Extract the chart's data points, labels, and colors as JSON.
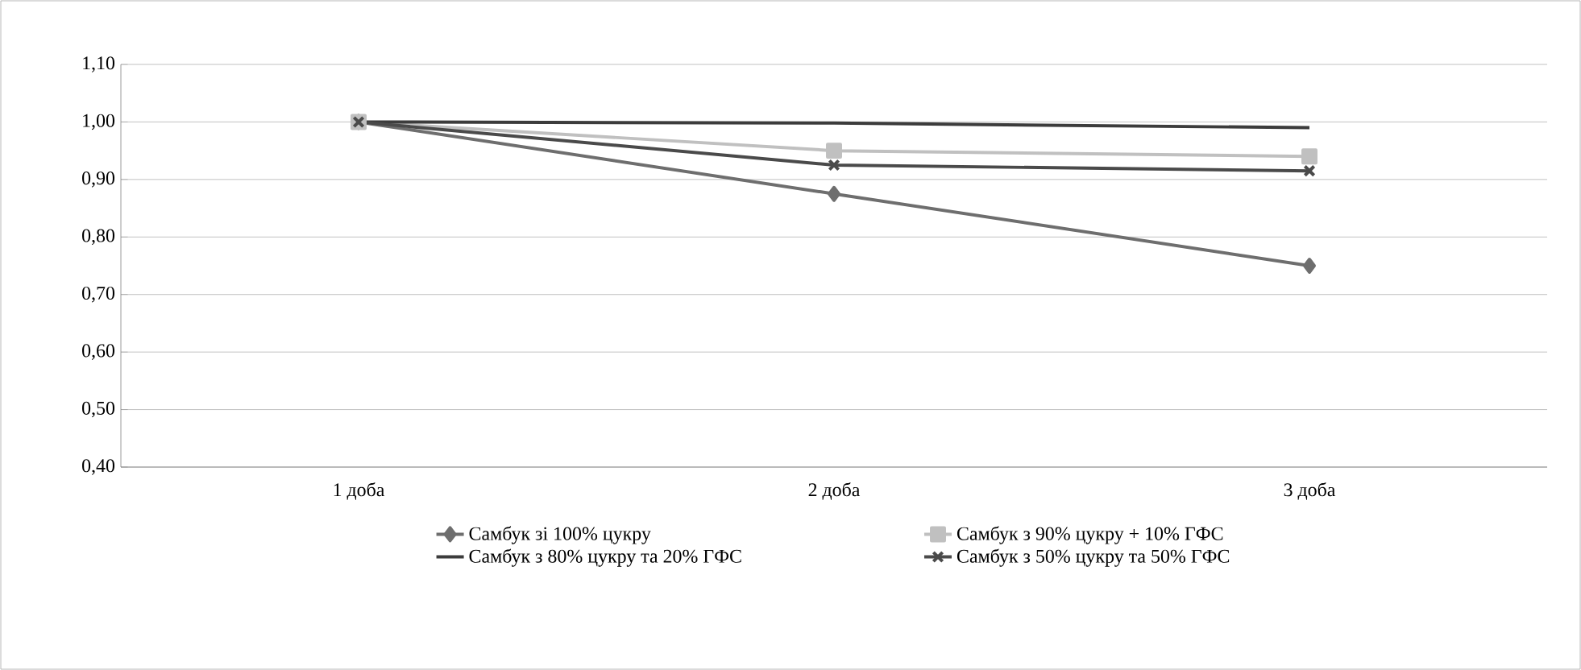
{
  "chart_data": {
    "type": "line",
    "categories": [
      "1 доба",
      "2 доба",
      "3 доба"
    ],
    "series": [
      {
        "name": "Самбук зі 100% цукру",
        "color": "#6e6e6e",
        "marker": "diamond",
        "values": [
          1.0,
          0.875,
          0.75
        ]
      },
      {
        "name": "Самбук з 90% цукру + 10% ГФС",
        "color": "#c0c0c0",
        "marker": "square",
        "values": [
          1.0,
          0.95,
          0.94
        ]
      },
      {
        "name": "Самбук з 80% цукру та 20% ГФС",
        "color": "#3c3c3c",
        "marker": "none",
        "values": [
          1.0,
          0.998,
          0.99
        ]
      },
      {
        "name": "Самбук з 50% цукру та 50% ГФС",
        "color": "#4a4a4a",
        "marker": "cross",
        "values": [
          1.0,
          0.925,
          0.915
        ]
      }
    ],
    "ylim": [
      0.4,
      1.1
    ],
    "yticks": [
      {
        "value": 0.4,
        "label": "0,40"
      },
      {
        "value": 0.5,
        "label": "0,50"
      },
      {
        "value": 0.6,
        "label": "0,60"
      },
      {
        "value": 0.7,
        "label": "0,70"
      },
      {
        "value": 0.8,
        "label": "0,80"
      },
      {
        "value": 0.9,
        "label": "0,90"
      },
      {
        "value": 1.0,
        "label": "1,00"
      },
      {
        "value": 1.1,
        "label": "1,10"
      }
    ],
    "grid": "y",
    "legend": "bottom",
    "line_style": "solid"
  }
}
